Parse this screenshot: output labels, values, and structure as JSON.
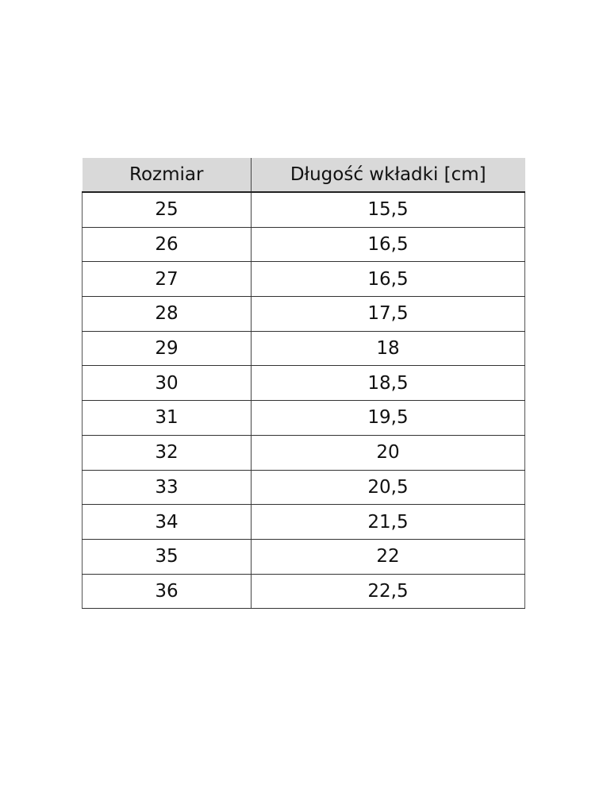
{
  "table": {
    "headers": [
      "Rozmiar",
      "Długość wkładki [cm]"
    ],
    "rows": [
      [
        "25",
        "15,5"
      ],
      [
        "26",
        "16,5"
      ],
      [
        "27",
        "16,5"
      ],
      [
        "28",
        "17,5"
      ],
      [
        "29",
        "18"
      ],
      [
        "30",
        "18,5"
      ],
      [
        "31",
        "19,5"
      ],
      [
        "32",
        "20"
      ],
      [
        "33",
        "20,5"
      ],
      [
        "34",
        "21,5"
      ],
      [
        "35",
        "22"
      ],
      [
        "36",
        "22,5"
      ]
    ],
    "header_bg": "#d9d9d9"
  }
}
